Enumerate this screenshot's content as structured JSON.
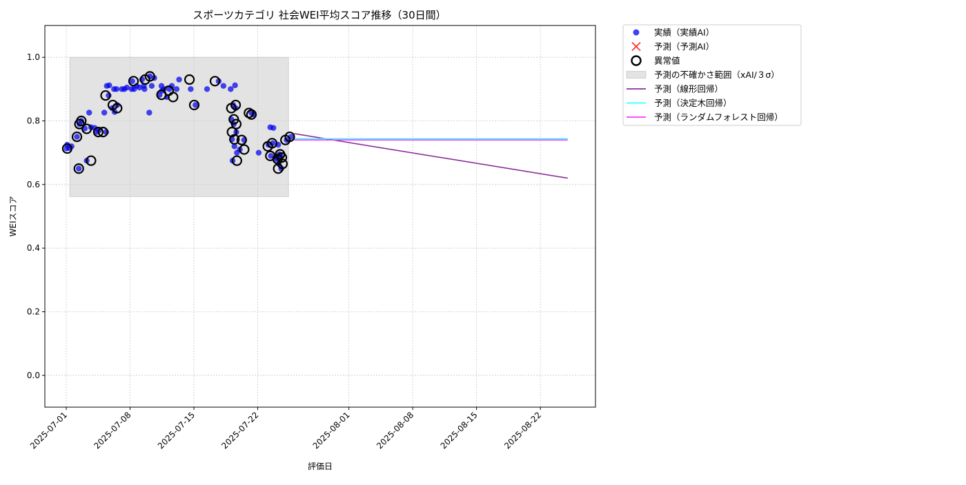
{
  "chart_data": {
    "type": "scatter",
    "title": "スポーツカテゴリ 社会WEI平均スコア推移（30日間）",
    "xlabel": "評価日",
    "ylabel": "WEIスコア",
    "x_range": [
      "2024-06-28",
      "2025-08-28"
    ],
    "ylim": [
      -0.1,
      1.1
    ],
    "yticks": [
      "0.0",
      "0.2",
      "0.4",
      "0.6",
      "0.8",
      "1.0"
    ],
    "xticks": [
      {
        "date": "2025-07-01",
        "label": "2025-07-01"
      },
      {
        "date": "2025-07-08",
        "label": "2025-07-08"
      },
      {
        "date": "2025-07-15",
        "label": "2025-07-15"
      },
      {
        "date": "2025-07-22",
        "label": "2025-07-22"
      },
      {
        "date": "2025-08-01",
        "label": "2025-08-01"
      },
      {
        "date": "2025-08-08",
        "label": "2025-08-08"
      },
      {
        "date": "2025-08-15",
        "label": "2025-08-15"
      },
      {
        "date": "2025-08-22",
        "label": "2025-08-22"
      }
    ],
    "grid": true,
    "legend_position": "outside-top-right",
    "colors": {
      "actual": "#0000ee",
      "forecast_ai": "#ff3333",
      "anomaly": "#000000",
      "uncertainty": "#cccccc",
      "linear": "#8b2d99",
      "decision_tree": "#33ffff",
      "random_forest": "#ff33ff"
    },
    "legend": [
      {
        "key": "actual",
        "label": "実績（実績AI）",
        "marker": "dot"
      },
      {
        "key": "forecast_ai",
        "label": "予測（予測AI）",
        "marker": "x"
      },
      {
        "key": "anomaly",
        "label": "異常値",
        "marker": "ring"
      },
      {
        "key": "uncertainty",
        "label": "予測の不確かさ範囲（xAI/３σ）",
        "marker": "box"
      },
      {
        "key": "linear",
        "label": "予測（線形回帰）",
        "marker": "line"
      },
      {
        "key": "decision_tree",
        "label": "予測（決定木回帰）",
        "marker": "line"
      },
      {
        "key": "random_forest",
        "label": "予測（ランダムフォレスト回帰）",
        "marker": "line"
      }
    ],
    "uncertainty_band": {
      "x_start": "2025-07-01",
      "x_end": "2025-07-25",
      "y_low": 0.562,
      "y_high": 1.0
    },
    "actual_points": [
      [
        "2025-07-01",
        0.713
      ],
      [
        "2025-07-01",
        0.715
      ],
      [
        "2025-07-01",
        0.72
      ],
      [
        "2025-07-01",
        0.725
      ],
      [
        "2025-07-02",
        0.65
      ],
      [
        "2025-07-02",
        0.8
      ],
      [
        "2025-07-02",
        0.75
      ],
      [
        "2025-07-02",
        0.79
      ],
      [
        "2025-07-03",
        0.78
      ],
      [
        "2025-07-03",
        0.675
      ],
      [
        "2025-07-03",
        0.826
      ],
      [
        "2025-07-03",
        0.776
      ],
      [
        "2025-07-04",
        0.765
      ],
      [
        "2025-07-04",
        0.77
      ],
      [
        "2025-07-04",
        0.778
      ],
      [
        "2025-07-05",
        0.765
      ],
      [
        "2025-07-05",
        0.88
      ],
      [
        "2025-07-05",
        0.826
      ],
      [
        "2025-07-05",
        0.91
      ],
      [
        "2025-07-05",
        0.912
      ],
      [
        "2025-07-06",
        0.9
      ],
      [
        "2025-07-06",
        0.9
      ],
      [
        "2025-07-06",
        0.84
      ],
      [
        "2025-07-06",
        0.828
      ],
      [
        "2025-07-06",
        0.85
      ],
      [
        "2025-07-07",
        0.9
      ],
      [
        "2025-07-07",
        0.9
      ],
      [
        "2025-07-07",
        0.905
      ],
      [
        "2025-07-08",
        0.9
      ],
      [
        "2025-07-08",
        0.9
      ],
      [
        "2025-07-08",
        0.91
      ],
      [
        "2025-07-08",
        0.925
      ],
      [
        "2025-07-09",
        0.91
      ],
      [
        "2025-07-09",
        0.905
      ],
      [
        "2025-07-09",
        0.93
      ],
      [
        "2025-07-09",
        0.9
      ],
      [
        "2025-07-10",
        0.826
      ],
      [
        "2025-07-10",
        0.91
      ],
      [
        "2025-07-10",
        0.935
      ],
      [
        "2025-07-10",
        0.94
      ],
      [
        "2025-07-11",
        0.91
      ],
      [
        "2025-07-11",
        0.9
      ],
      [
        "2025-07-11",
        0.882
      ],
      [
        "2025-07-11",
        0.895
      ],
      [
        "2025-07-12",
        0.875
      ],
      [
        "2025-07-12",
        0.9
      ],
      [
        "2025-07-12",
        0.91
      ],
      [
        "2025-07-13",
        0.9
      ],
      [
        "2025-07-13",
        0.93
      ],
      [
        "2025-07-14",
        0.9
      ],
      [
        "2025-07-15",
        0.85
      ],
      [
        "2025-07-16",
        0.9
      ],
      [
        "2025-07-17",
        0.925
      ],
      [
        "2025-07-18",
        0.91
      ],
      [
        "2025-07-19",
        0.912
      ],
      [
        "2025-07-19",
        0.9
      ],
      [
        "2025-07-19",
        0.85
      ],
      [
        "2025-07-19",
        0.84
      ],
      [
        "2025-07-19",
        0.805
      ],
      [
        "2025-07-19",
        0.79
      ],
      [
        "2025-07-19",
        0.765
      ],
      [
        "2025-07-19",
        0.742
      ],
      [
        "2025-07-19",
        0.72
      ],
      [
        "2025-07-19",
        0.7
      ],
      [
        "2025-07-19",
        0.675
      ],
      [
        "2025-07-20",
        0.74
      ],
      [
        "2025-07-20",
        0.71
      ],
      [
        "2025-07-21",
        0.825
      ],
      [
        "2025-07-21",
        0.82
      ],
      [
        "2025-07-22",
        0.7
      ],
      [
        "2025-07-23",
        0.78
      ],
      [
        "2025-07-23",
        0.73
      ],
      [
        "2025-07-23",
        0.725
      ],
      [
        "2025-07-23",
        0.69
      ],
      [
        "2025-07-23",
        0.778
      ],
      [
        "2025-07-24",
        0.725
      ],
      [
        "2025-07-24",
        0.69
      ],
      [
        "2025-07-24",
        0.68
      ],
      [
        "2025-07-24",
        0.665
      ],
      [
        "2025-07-24",
        0.65
      ],
      [
        "2025-07-24",
        0.685
      ],
      [
        "2025-07-24",
        0.695
      ],
      [
        "2025-07-25",
        0.75
      ],
      [
        "2025-07-25",
        0.74
      ]
    ],
    "anomalies": [
      [
        "2025-07-01",
        0.713
      ],
      [
        "2025-07-02",
        0.65
      ],
      [
        "2025-07-02",
        0.8
      ],
      [
        "2025-07-02",
        0.75
      ],
      [
        "2025-07-02",
        0.79
      ],
      [
        "2025-07-03",
        0.675
      ],
      [
        "2025-07-03",
        0.775
      ],
      [
        "2025-07-04",
        0.765
      ],
      [
        "2025-07-05",
        0.765
      ],
      [
        "2025-07-05",
        0.88
      ],
      [
        "2025-07-06",
        0.84
      ],
      [
        "2025-07-06",
        0.85
      ],
      [
        "2025-07-08",
        0.925
      ],
      [
        "2025-07-09",
        0.93
      ],
      [
        "2025-07-10",
        0.94
      ],
      [
        "2025-07-11",
        0.882
      ],
      [
        "2025-07-12",
        0.875
      ],
      [
        "2025-07-12",
        0.895
      ],
      [
        "2025-07-14",
        0.93
      ],
      [
        "2025-07-15",
        0.85
      ],
      [
        "2025-07-17",
        0.925
      ],
      [
        "2025-07-19",
        0.85
      ],
      [
        "2025-07-19",
        0.84
      ],
      [
        "2025-07-19",
        0.805
      ],
      [
        "2025-07-19",
        0.79
      ],
      [
        "2025-07-19",
        0.765
      ],
      [
        "2025-07-19",
        0.742
      ],
      [
        "2025-07-19",
        0.675
      ],
      [
        "2025-07-20",
        0.74
      ],
      [
        "2025-07-20",
        0.71
      ],
      [
        "2025-07-21",
        0.825
      ],
      [
        "2025-07-21",
        0.82
      ],
      [
        "2025-07-23",
        0.73
      ],
      [
        "2025-07-23",
        0.72
      ],
      [
        "2025-07-23",
        0.69
      ],
      [
        "2025-07-24",
        0.685
      ],
      [
        "2025-07-24",
        0.68
      ],
      [
        "2025-07-24",
        0.695
      ],
      [
        "2025-07-24",
        0.665
      ],
      [
        "2025-07-24",
        0.65
      ],
      [
        "2025-07-25",
        0.75
      ],
      [
        "2025-07-25",
        0.74
      ]
    ],
    "forecast_series": [
      {
        "key": "linear",
        "x": [
          "2025-07-26",
          "2025-08-25"
        ],
        "y": [
          0.76,
          0.62
        ]
      },
      {
        "key": "decision_tree",
        "x": [
          "2025-07-26",
          "2025-08-25"
        ],
        "y": [
          0.744,
          0.744
        ]
      },
      {
        "key": "random_forest",
        "x": [
          "2025-07-26",
          "2025-08-25"
        ],
        "y": [
          0.74,
          0.74
        ]
      }
    ]
  }
}
